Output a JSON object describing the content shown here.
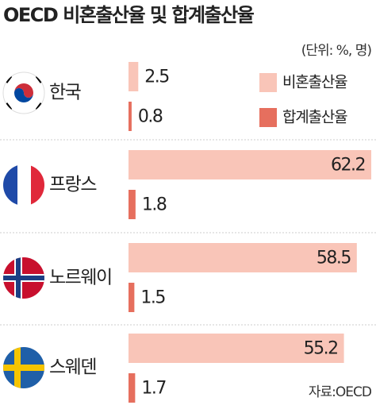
{
  "chart_data": {
    "type": "bar",
    "orientation": "horizontal",
    "title": "OECD 비혼출산율 및 합계출산율",
    "unit_note": "(단위: %, 명)",
    "source": "자료:OECD",
    "categories": [
      "한국",
      "프랑스",
      "노르웨이",
      "스웨덴"
    ],
    "series": [
      {
        "name": "비혼출산율",
        "color": "#f9c5b8",
        "values": [
          2.5,
          62.2,
          58.5,
          55.2
        ]
      },
      {
        "name": "합계출산율",
        "color": "#e66f5e",
        "values": [
          0.8,
          1.8,
          1.5,
          1.7
        ]
      }
    ]
  }
}
